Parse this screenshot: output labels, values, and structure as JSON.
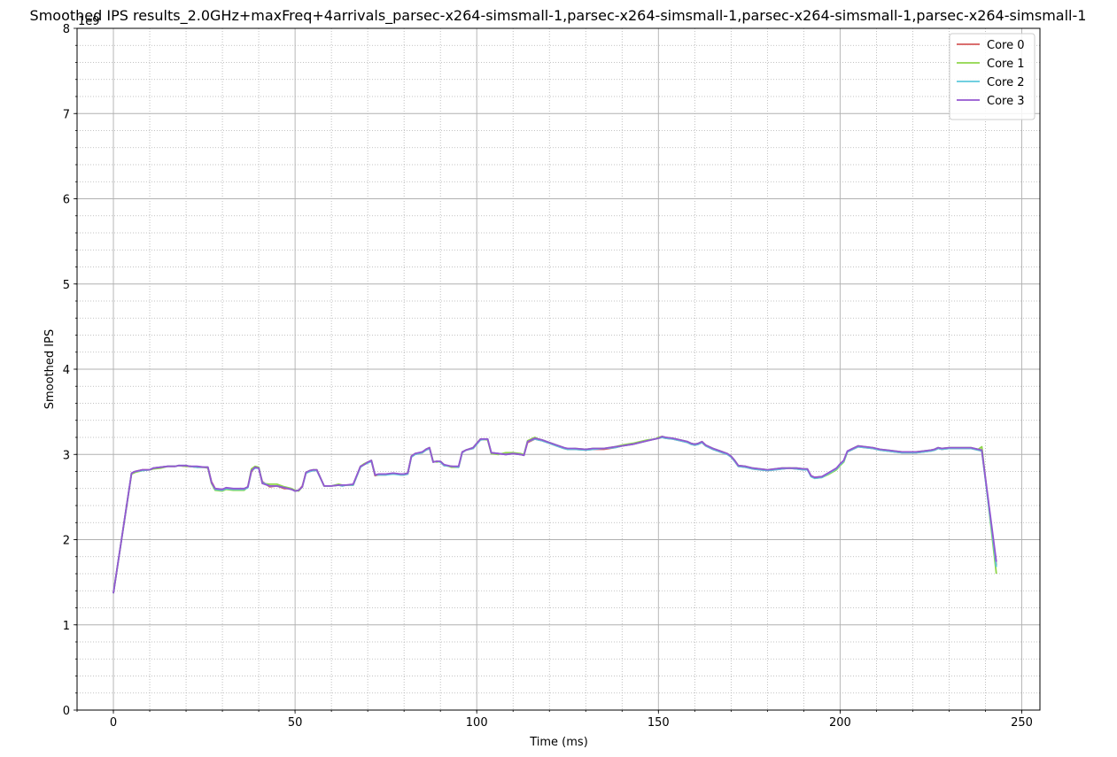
{
  "chart_data": {
    "type": "line",
    "title": "Smoothed IPS results_2.0GHz+maxFreq+4arrivals_parsec-x264-simsmall-1,parsec-x264-simsmall-1,parsec-x264-simsmall-1,parsec-x264-simsmall-1",
    "xlabel": "Time (ms)",
    "ylabel": "Smoothed IPS",
    "y_scale_label": "1e9",
    "xlim": [
      -10,
      255
    ],
    "ylim": [
      0,
      8
    ],
    "x_ticks": [
      0,
      50,
      100,
      150,
      200,
      250
    ],
    "x_tick_labels": [
      "0",
      "50",
      "100",
      "150",
      "200",
      "250"
    ],
    "y_ticks": [
      0,
      1,
      2,
      3,
      4,
      5,
      6,
      7,
      8
    ],
    "y_tick_labels": [
      "0",
      "1",
      "2",
      "3",
      "4",
      "5",
      "6",
      "7",
      "8"
    ],
    "grid": true,
    "minor_grid": true,
    "legend_position": "top-right",
    "x": [
      0,
      5,
      6,
      8,
      10,
      11,
      13,
      15,
      17,
      18,
      20,
      21,
      23,
      25,
      26,
      27,
      28,
      30,
      31,
      33,
      35,
      36,
      37,
      38,
      39,
      40,
      41,
      43,
      45,
      47,
      48,
      49,
      50,
      51,
      52,
      53,
      54,
      55,
      56,
      58,
      60,
      62,
      63,
      64,
      66,
      68,
      69,
      70,
      71,
      72,
      73,
      75,
      77,
      79,
      80,
      81,
      82,
      83,
      85,
      86,
      87,
      88,
      89,
      90,
      91,
      93,
      95,
      96,
      97,
      99,
      100,
      101,
      103,
      104,
      106,
      108,
      110,
      112,
      113,
      114,
      116,
      117,
      118,
      120,
      122,
      124,
      125,
      127,
      130,
      132,
      135,
      138,
      140,
      143,
      145,
      147,
      149,
      150,
      151,
      152,
      154,
      156,
      158,
      159,
      160,
      161,
      162,
      163,
      165,
      167,
      169,
      170,
      171,
      172,
      174,
      176,
      178,
      180,
      182,
      184,
      186,
      188,
      190,
      191,
      192,
      193,
      195,
      197,
      199,
      200,
      201,
      202,
      203,
      205,
      207,
      209,
      211,
      213,
      215,
      217,
      219,
      221,
      223,
      225,
      226,
      227,
      228,
      230,
      232,
      234,
      236,
      238,
      239,
      243
    ],
    "series": [
      {
        "name": "Core 0",
        "color": "#d45a5a",
        "values": [
          1.37,
          2.78,
          2.8,
          2.82,
          2.82,
          2.84,
          2.85,
          2.86,
          2.86,
          2.87,
          2.86,
          2.86,
          2.85,
          2.85,
          2.85,
          2.68,
          2.6,
          2.58,
          2.6,
          2.59,
          2.6,
          2.59,
          2.62,
          2.8,
          2.85,
          2.84,
          2.68,
          2.62,
          2.63,
          2.6,
          2.6,
          2.59,
          2.57,
          2.58,
          2.63,
          2.78,
          2.8,
          2.81,
          2.81,
          2.63,
          2.63,
          2.64,
          2.63,
          2.64,
          2.64,
          2.85,
          2.88,
          2.91,
          2.92,
          2.75,
          2.76,
          2.76,
          2.78,
          2.76,
          2.76,
          2.77,
          2.97,
          3.0,
          3.02,
          3.05,
          3.07,
          2.91,
          2.92,
          2.91,
          2.87,
          2.86,
          2.85,
          3.02,
          3.05,
          3.07,
          3.12,
          3.17,
          3.18,
          3.02,
          3.01,
          3.0,
          3.01,
          3.0,
          2.99,
          3.14,
          3.18,
          3.17,
          3.16,
          3.13,
          3.1,
          3.07,
          3.06,
          3.06,
          3.05,
          3.06,
          3.06,
          3.08,
          3.1,
          3.12,
          3.14,
          3.16,
          3.18,
          3.19,
          3.2,
          3.19,
          3.18,
          3.16,
          3.14,
          3.12,
          3.11,
          3.12,
          3.14,
          3.1,
          3.06,
          3.03,
          3.0,
          2.97,
          2.92,
          2.86,
          2.85,
          2.83,
          2.82,
          2.81,
          2.82,
          2.83,
          2.84,
          2.83,
          2.82,
          2.82,
          2.75,
          2.73,
          2.74,
          2.78,
          2.83,
          2.88,
          2.92,
          3.03,
          3.05,
          3.09,
          3.08,
          3.07,
          3.05,
          3.04,
          3.03,
          3.02,
          3.02,
          3.02,
          3.03,
          3.04,
          3.05,
          3.07,
          3.06,
          3.07,
          3.07,
          3.07,
          3.07,
          3.05,
          3.04,
          1.7
        ]
      },
      {
        "name": "Core 1",
        "color": "#8fd64a",
        "values": [
          1.37,
          2.77,
          2.79,
          2.81,
          2.82,
          2.83,
          2.84,
          2.86,
          2.86,
          2.87,
          2.86,
          2.86,
          2.85,
          2.85,
          2.84,
          2.66,
          2.58,
          2.57,
          2.59,
          2.58,
          2.58,
          2.58,
          2.62,
          2.83,
          2.86,
          2.85,
          2.66,
          2.65,
          2.65,
          2.62,
          2.61,
          2.6,
          2.58,
          2.57,
          2.62,
          2.79,
          2.81,
          2.82,
          2.82,
          2.63,
          2.63,
          2.65,
          2.64,
          2.64,
          2.64,
          2.86,
          2.89,
          2.91,
          2.93,
          2.76,
          2.76,
          2.77,
          2.77,
          2.77,
          2.77,
          2.78,
          2.98,
          3.01,
          3.02,
          3.06,
          3.08,
          2.92,
          2.91,
          2.92,
          2.88,
          2.85,
          2.85,
          3.03,
          3.05,
          3.08,
          3.13,
          3.18,
          3.17,
          3.01,
          3.0,
          3.02,
          3.02,
          3.01,
          3.0,
          3.16,
          3.2,
          3.18,
          3.17,
          3.14,
          3.11,
          3.08,
          3.06,
          3.07,
          3.06,
          3.07,
          3.07,
          3.09,
          3.11,
          3.13,
          3.15,
          3.17,
          3.18,
          3.2,
          3.21,
          3.2,
          3.19,
          3.17,
          3.15,
          3.13,
          3.12,
          3.13,
          3.15,
          3.11,
          3.07,
          3.04,
          3.01,
          2.98,
          2.93,
          2.87,
          2.86,
          2.84,
          2.83,
          2.82,
          2.83,
          2.84,
          2.84,
          2.84,
          2.83,
          2.83,
          2.74,
          2.72,
          2.73,
          2.77,
          2.82,
          2.87,
          2.91,
          3.03,
          3.06,
          3.1,
          3.09,
          3.08,
          3.06,
          3.05,
          3.04,
          3.03,
          3.03,
          3.03,
          3.04,
          3.05,
          3.06,
          3.08,
          3.07,
          3.08,
          3.08,
          3.08,
          3.08,
          3.06,
          3.09,
          1.6
        ]
      },
      {
        "name": "Core 2",
        "color": "#5bc8dc",
        "values": [
          1.37,
          2.78,
          2.8,
          2.81,
          2.82,
          2.84,
          2.85,
          2.86,
          2.86,
          2.87,
          2.87,
          2.86,
          2.85,
          2.85,
          2.85,
          2.67,
          2.59,
          2.58,
          2.6,
          2.59,
          2.59,
          2.59,
          2.61,
          2.81,
          2.84,
          2.84,
          2.67,
          2.63,
          2.63,
          2.61,
          2.6,
          2.59,
          2.57,
          2.58,
          2.62,
          2.78,
          2.8,
          2.81,
          2.81,
          2.63,
          2.63,
          2.64,
          2.63,
          2.64,
          2.64,
          2.85,
          2.88,
          2.9,
          2.92,
          2.76,
          2.76,
          2.76,
          2.77,
          2.76,
          2.76,
          2.77,
          2.97,
          3.0,
          3.02,
          3.05,
          3.07,
          2.91,
          2.92,
          2.91,
          2.87,
          2.86,
          2.85,
          3.02,
          3.05,
          3.07,
          3.12,
          3.17,
          3.18,
          3.02,
          3.01,
          3.0,
          3.01,
          3.0,
          2.99,
          3.15,
          3.18,
          3.17,
          3.16,
          3.13,
          3.1,
          3.07,
          3.06,
          3.06,
          3.05,
          3.06,
          3.07,
          3.08,
          3.1,
          3.12,
          3.14,
          3.16,
          3.18,
          3.19,
          3.2,
          3.19,
          3.18,
          3.16,
          3.14,
          3.12,
          3.11,
          3.12,
          3.14,
          3.1,
          3.06,
          3.03,
          3.0,
          2.97,
          2.92,
          2.86,
          2.85,
          2.83,
          2.82,
          2.81,
          2.82,
          2.83,
          2.84,
          2.83,
          2.82,
          2.82,
          2.74,
          2.72,
          2.73,
          2.78,
          2.83,
          2.88,
          2.92,
          3.03,
          3.05,
          3.09,
          3.08,
          3.07,
          3.05,
          3.04,
          3.03,
          3.02,
          3.02,
          3.02,
          3.03,
          3.04,
          3.05,
          3.07,
          3.06,
          3.07,
          3.07,
          3.07,
          3.07,
          3.05,
          3.04,
          1.68
        ]
      },
      {
        "name": "Core 3",
        "color": "#9457d1",
        "values": [
          1.37,
          2.78,
          2.8,
          2.82,
          2.82,
          2.84,
          2.85,
          2.86,
          2.86,
          2.87,
          2.87,
          2.86,
          2.86,
          2.85,
          2.85,
          2.67,
          2.6,
          2.59,
          2.61,
          2.6,
          2.6,
          2.6,
          2.62,
          2.81,
          2.85,
          2.84,
          2.66,
          2.63,
          2.63,
          2.61,
          2.6,
          2.59,
          2.57,
          2.58,
          2.62,
          2.79,
          2.81,
          2.82,
          2.82,
          2.63,
          2.63,
          2.64,
          2.64,
          2.64,
          2.65,
          2.86,
          2.88,
          2.91,
          2.93,
          2.76,
          2.77,
          2.77,
          2.78,
          2.77,
          2.77,
          2.78,
          2.98,
          3.01,
          3.03,
          3.06,
          3.08,
          2.91,
          2.92,
          2.92,
          2.88,
          2.86,
          2.86,
          3.03,
          3.05,
          3.08,
          3.13,
          3.18,
          3.18,
          3.02,
          3.01,
          3.0,
          3.01,
          3.0,
          2.99,
          3.15,
          3.19,
          3.18,
          3.17,
          3.14,
          3.11,
          3.08,
          3.07,
          3.07,
          3.06,
          3.07,
          3.07,
          3.09,
          3.1,
          3.12,
          3.14,
          3.16,
          3.18,
          3.19,
          3.21,
          3.2,
          3.19,
          3.17,
          3.15,
          3.13,
          3.12,
          3.13,
          3.15,
          3.11,
          3.07,
          3.04,
          3.01,
          2.98,
          2.93,
          2.87,
          2.86,
          2.84,
          2.83,
          2.82,
          2.83,
          2.84,
          2.84,
          2.84,
          2.83,
          2.83,
          2.75,
          2.73,
          2.74,
          2.79,
          2.84,
          2.89,
          2.93,
          3.04,
          3.06,
          3.1,
          3.09,
          3.08,
          3.06,
          3.05,
          3.04,
          3.03,
          3.03,
          3.03,
          3.04,
          3.05,
          3.06,
          3.08,
          3.07,
          3.08,
          3.08,
          3.08,
          3.08,
          3.06,
          3.05,
          1.74
        ]
      }
    ]
  }
}
